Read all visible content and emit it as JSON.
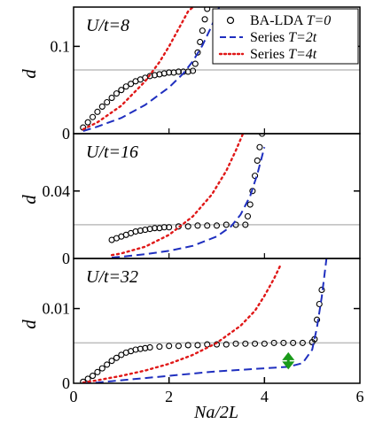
{
  "chart_data": [
    {
      "type": "scatter",
      "panel_label": "U/t=8",
      "ylabel": "d",
      "yticks": [
        "0",
        "0.1"
      ],
      "ylim": [
        0,
        0.145
      ],
      "xlim": [
        0,
        6
      ],
      "reference_line_y": 0.073,
      "legend": {
        "placement": "top-right",
        "entries": [
          {
            "label_main": "BA-LDA ",
            "label_italic": "T=0",
            "marker": "open-circle",
            "color": "#000000"
          },
          {
            "label_main": "Series ",
            "label_italic": "T=2t",
            "marker": "dashed-line",
            "color": "#1f2fbf"
          },
          {
            "label_main": "Series ",
            "label_italic": "T=4t",
            "marker": "dotted-line",
            "color": "#e01818"
          }
        ]
      },
      "series": [
        {
          "name": "BA-LDA T=0",
          "style": "circles",
          "color": "#000000",
          "x": [
            0.2,
            0.3,
            0.4,
            0.5,
            0.6,
            0.7,
            0.8,
            0.9,
            1.0,
            1.1,
            1.2,
            1.3,
            1.4,
            1.5,
            1.6,
            1.7,
            1.8,
            1.9,
            2.0,
            2.1,
            2.2,
            2.3,
            2.4,
            2.5,
            2.55,
            2.6,
            2.65,
            2.7,
            2.75,
            2.8
          ],
          "y": [
            0.007,
            0.013,
            0.019,
            0.025,
            0.031,
            0.036,
            0.041,
            0.046,
            0.05,
            0.054,
            0.057,
            0.06,
            0.062,
            0.064,
            0.066,
            0.067,
            0.068,
            0.069,
            0.07,
            0.07,
            0.071,
            0.071,
            0.071,
            0.072,
            0.08,
            0.093,
            0.105,
            0.118,
            0.131,
            0.143
          ]
        },
        {
          "name": "Series T=2t",
          "style": "dashed",
          "color": "#1f2fbf",
          "x": [
            0.2,
            0.5,
            1.0,
            1.5,
            2.0,
            2.3,
            2.5,
            2.7,
            2.9,
            3.05
          ],
          "y": [
            0.003,
            0.008,
            0.018,
            0.033,
            0.053,
            0.069,
            0.083,
            0.101,
            0.124,
            0.145
          ]
        },
        {
          "name": "Series T=4t",
          "style": "dotted",
          "color": "#e01818",
          "x": [
            0.2,
            0.5,
            1.0,
            1.5,
            1.8,
            2.0,
            2.2,
            2.4,
            2.5
          ],
          "y": [
            0.005,
            0.013,
            0.032,
            0.06,
            0.082,
            0.1,
            0.12,
            0.14,
            0.145
          ]
        }
      ]
    },
    {
      "type": "scatter",
      "panel_label": "U/t=16",
      "ylabel": "d",
      "yticks": [
        "0",
        "0.04"
      ],
      "ylim": [
        0,
        0.074
      ],
      "xlim": [
        0,
        6
      ],
      "reference_line_y": 0.02,
      "series": [
        {
          "name": "BA-LDA T=0",
          "style": "circles",
          "color": "#000000",
          "x": [
            0.8,
            0.9,
            1.0,
            1.1,
            1.2,
            1.3,
            1.4,
            1.5,
            1.6,
            1.7,
            1.8,
            1.9,
            2.0,
            2.2,
            2.4,
            2.6,
            2.8,
            3.0,
            3.2,
            3.4,
            3.6,
            3.65,
            3.7,
            3.75,
            3.8,
            3.85,
            3.9,
            3.95
          ],
          "y": [
            0.011,
            0.012,
            0.013,
            0.014,
            0.015,
            0.016,
            0.0165,
            0.017,
            0.0175,
            0.018,
            0.018,
            0.0185,
            0.0185,
            0.019,
            0.019,
            0.0195,
            0.0195,
            0.0195,
            0.02,
            0.02,
            0.02,
            0.025,
            0.032,
            0.04,
            0.049,
            0.058,
            0.066,
            0.074
          ]
        },
        {
          "name": "Series T=2t",
          "style": "dashed",
          "color": "#1f2fbf",
          "x": [
            0.8,
            1.0,
            1.5,
            2.0,
            2.5,
            3.0,
            3.3,
            3.5,
            3.7,
            3.85,
            4.0
          ],
          "y": [
            0.0005,
            0.001,
            0.0025,
            0.0045,
            0.0075,
            0.013,
            0.019,
            0.026,
            0.037,
            0.05,
            0.066
          ]
        },
        {
          "name": "Series T=4t",
          "style": "dotted",
          "color": "#e01818",
          "x": [
            0.8,
            1.0,
            1.5,
            2.0,
            2.5,
            2.9,
            3.2,
            3.4,
            3.55
          ],
          "y": [
            0.002,
            0.003,
            0.007,
            0.014,
            0.025,
            0.038,
            0.052,
            0.064,
            0.074
          ]
        }
      ]
    },
    {
      "type": "scatter",
      "panel_label": "U/t=32",
      "ylabel": "d",
      "yticks": [
        "0",
        "0.01"
      ],
      "ylim": [
        0,
        0.0167
      ],
      "xlim": [
        0,
        6
      ],
      "xticks": [
        "0",
        "2",
        "4",
        "6"
      ],
      "xlabel": "Na/2L",
      "reference_line_y": 0.0054,
      "arrow": {
        "x": 4.5,
        "y_low": 0.0022,
        "y_high": 0.0038,
        "color": "#1a9a1a"
      },
      "series": [
        {
          "name": "BA-LDA T=0",
          "style": "circles",
          "color": "#000000",
          "x": [
            0.2,
            0.3,
            0.4,
            0.5,
            0.6,
            0.7,
            0.8,
            0.9,
            1.0,
            1.1,
            1.2,
            1.3,
            1.4,
            1.5,
            1.6,
            1.8,
            2.0,
            2.2,
            2.4,
            2.6,
            2.8,
            3.0,
            3.2,
            3.4,
            3.6,
            3.8,
            4.0,
            4.2,
            4.4,
            4.6,
            4.8,
            5.0,
            5.05,
            5.1,
            5.15,
            5.2
          ],
          "y": [
            0.0002,
            0.0006,
            0.001,
            0.0015,
            0.002,
            0.0025,
            0.003,
            0.0034,
            0.0038,
            0.0041,
            0.0043,
            0.0045,
            0.0046,
            0.0047,
            0.0048,
            0.0049,
            0.005,
            0.005,
            0.0051,
            0.0051,
            0.0052,
            0.0052,
            0.0052,
            0.0053,
            0.0053,
            0.0053,
            0.0053,
            0.0054,
            0.0054,
            0.0054,
            0.0054,
            0.0055,
            0.0059,
            0.0085,
            0.0106,
            0.0125
          ]
        },
        {
          "name": "Series T=2t",
          "style": "dashed",
          "color": "#1f2fbf",
          "x": [
            0.2,
            0.5,
            1.0,
            1.5,
            2.0,
            2.5,
            3.0,
            3.5,
            4.0,
            4.5,
            4.8,
            5.0,
            5.1,
            5.2,
            5.3
          ],
          "y": [
            0.0,
            0.0001,
            0.0004,
            0.0007,
            0.001,
            0.0013,
            0.0016,
            0.0018,
            0.002,
            0.0022,
            0.0027,
            0.0045,
            0.0075,
            0.0115,
            0.0167
          ]
        },
        {
          "name": "Series T=4t",
          "style": "dotted",
          "color": "#e01818",
          "x": [
            0.2,
            0.5,
            1.0,
            1.5,
            2.0,
            2.5,
            3.0,
            3.5,
            3.8,
            4.0,
            4.2,
            4.35
          ],
          "y": [
            0.0001,
            0.0004,
            0.001,
            0.0017,
            0.0026,
            0.0038,
            0.0054,
            0.0077,
            0.0097,
            0.0117,
            0.014,
            0.016
          ]
        }
      ]
    }
  ]
}
